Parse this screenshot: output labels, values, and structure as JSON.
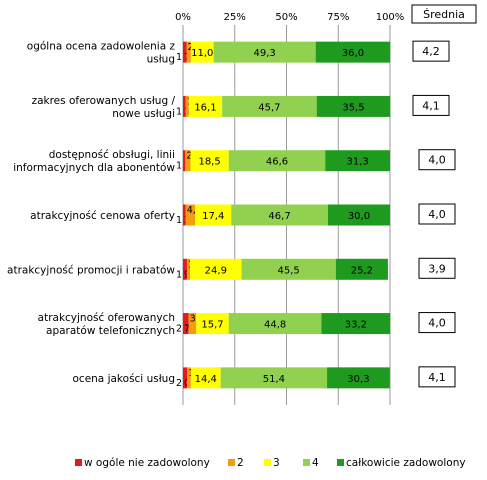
{
  "chart_data": {
    "type": "bar",
    "stacked": true,
    "orientation": "horizontal",
    "categories": [
      [
        "ogólna ocena zadowolenia z",
        "usług"
      ],
      [
        "zakres oferowanych usług /",
        "nowe usługi"
      ],
      [
        "dostępność obsługi, linii",
        "informacyjnych dla abonentów"
      ],
      [
        "atrakcyjność cenowa oferty"
      ],
      [
        "atrakcyjność promocji i rabatów"
      ],
      [
        "atrakcyjność oferowanych",
        "aparatów telefonicznych"
      ],
      [
        "ocena jakości usług"
      ]
    ],
    "series": [
      {
        "name": "w ogóle nie zadowolony",
        "color": "#e41a1c",
        "values": [
          1.7,
          1.3,
          1.1,
          1.3,
          1.9,
          2.7,
          2.0
        ],
        "labels": [
          "1,7",
          "1,3",
          "1,1",
          "1,3",
          "1,9",
          "2,7",
          "2,0"
        ]
      },
      {
        "name": "2",
        "color": "#f39c12",
        "values": [
          2.1,
          1.5,
          2.5,
          4.6,
          1.5,
          3.7,
          1.8
        ],
        "labels": [
          "2,1",
          "1,5",
          "2,5",
          "4,6",
          "1,5",
          "3,7",
          "1,8"
        ]
      },
      {
        "name": "3",
        "color": "#ffff00",
        "values": [
          11.0,
          16.1,
          18.5,
          17.4,
          24.9,
          15.7,
          14.4
        ],
        "labels": [
          "11,0",
          "16,1",
          "18,5",
          "17,4",
          "24,9",
          "15,7",
          "14,4"
        ]
      },
      {
        "name": "4",
        "color": "#92d050",
        "values": [
          49.3,
          45.7,
          46.6,
          46.7,
          45.5,
          44.8,
          51.4
        ],
        "labels": [
          "49,3",
          "45,7",
          "46,6",
          "46,7",
          "45,5",
          "44,8",
          "51,4"
        ]
      },
      {
        "name": "całkowicie zadowolony",
        "color": "#1e9a1e",
        "values": [
          36.0,
          35.5,
          31.3,
          30.0,
          25.2,
          33.2,
          30.3
        ],
        "labels": [
          "36,0",
          "35,5",
          "31,3",
          "30,0",
          "25,2",
          "33,2",
          "30,3"
        ]
      }
    ],
    "xlim": [
      0,
      100
    ],
    "xticks": [
      "0%",
      "25%",
      "50%",
      "75%",
      "100%"
    ],
    "grid": true,
    "legend_position": "bottom",
    "average_header": "Średnia",
    "averages": [
      "4,2",
      "4,1",
      "4,0",
      "4,0",
      "3,9",
      "4,0",
      "4,1"
    ]
  }
}
